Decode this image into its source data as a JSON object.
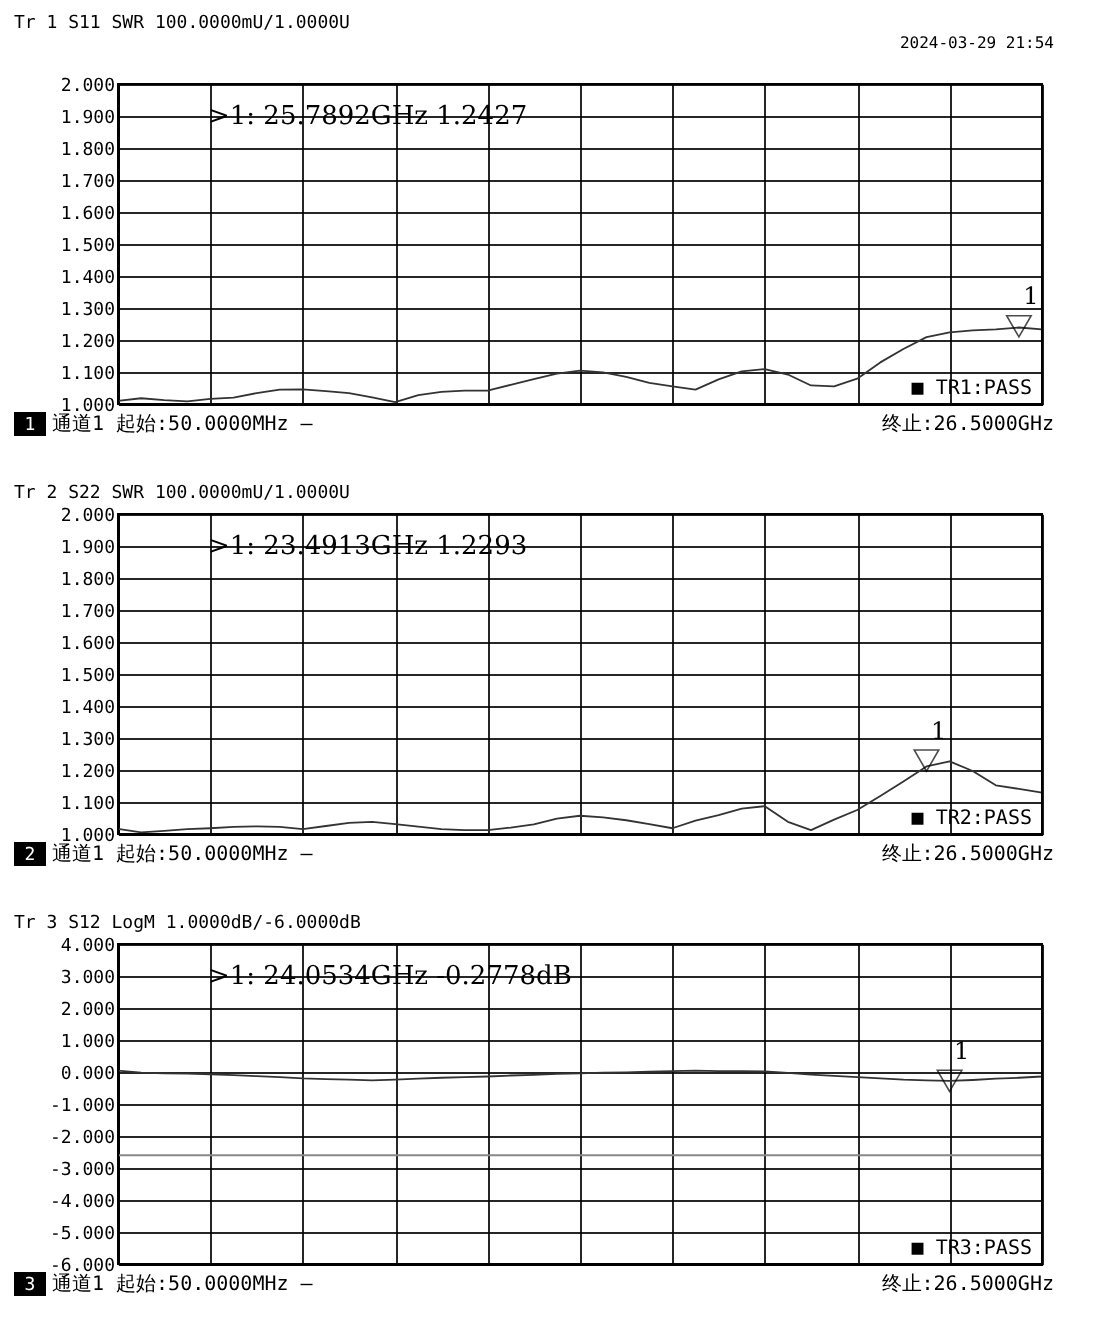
{
  "chart_data": [
    {
      "type": "line",
      "title": "Tr 1  S11 SWR 100.0000mU/1.0000U",
      "annotations": [
        ">1:   25.7892GHz 1.2427",
        "■ TR1:PASS",
        "1",
        "通道1  起始:50.0000MHz —",
        "终止:26.5000GHz",
        "2024-03-29 21:54"
      ],
      "categories": [
        null,
        null,
        null,
        null,
        null,
        null,
        null,
        null,
        null,
        null,
        null,
        null,
        null,
        null,
        null,
        null,
        null,
        null,
        null,
        null,
        null,
        null,
        null,
        null,
        null,
        null,
        null,
        null,
        null,
        null,
        null,
        null,
        null,
        null,
        null,
        null,
        null,
        null,
        null,
        null,
        null
      ],
      "series": [
        {
          "color": "#333333",
          "values": [
            1.01,
            1.018,
            1.012,
            1.008,
            1.016,
            1.02,
            1.034,
            1.045,
            1.046,
            1.04,
            1.034,
            1.021,
            1.006,
            1.028,
            1.038,
            1.042,
            1.042,
            1.06,
            1.078,
            1.095,
            1.104,
            1.099,
            1.085,
            1.066,
            1.055,
            1.045,
            1.077,
            1.102,
            1.109,
            1.092,
            1.058,
            1.055,
            1.079,
            1.13,
            1.172,
            1.209,
            1.224,
            1.23,
            1.233,
            1.239,
            1.233
          ]
        },
        {
          "type": "scatter",
          "name": "1",
          "marker": "triangle",
          "color": "#000000",
          "values": [
            null,
            null,
            null,
            null,
            null,
            null,
            null,
            null,
            null,
            null,
            null,
            null,
            null,
            null,
            null,
            null,
            null,
            null,
            null,
            null,
            null,
            null,
            null,
            null,
            null,
            null,
            null,
            null,
            null,
            null,
            null,
            null,
            null,
            null,
            null,
            null,
            null,
            null,
            null,
            1.2427,
            null
          ]
        }
      ],
      "ylim": [
        1.0,
        2.0
      ],
      "yticks": [
        {
          "value": 1.0,
          "label": "1.000"
        },
        {
          "value": 1.1,
          "label": "1.100"
        },
        {
          "value": 1.2,
          "label": "1.200"
        },
        {
          "value": 1.3,
          "label": "1.300"
        },
        {
          "value": 1.4,
          "label": "1.400"
        },
        {
          "value": 1.5,
          "label": "1.500"
        },
        {
          "value": 1.6,
          "label": "1.600"
        },
        {
          "value": 1.7,
          "label": "1.700"
        },
        {
          "value": 1.8,
          "label": "1.800"
        },
        {
          "value": 1.9,
          "label": "1.900"
        },
        {
          "value": 2.0,
          "label": "2.000"
        }
      ],
      "tick_labels": "y",
      "grid": true,
      "legend": false
    },
    {
      "type": "line",
      "title": "Tr 2  S22 SWR 100.0000mU/1.0000U",
      "annotations": [
        ">1:   23.4913GHz 1.2293",
        "■ TR2:PASS",
        "2",
        "通道1  起始:50.0000MHz —",
        "终止:26.5000GHz"
      ],
      "categories": [
        null,
        null,
        null,
        null,
        null,
        null,
        null,
        null,
        null,
        null,
        null,
        null,
        null,
        null,
        null,
        null,
        null,
        null,
        null,
        null,
        null,
        null,
        null,
        null,
        null,
        null,
        null,
        null,
        null,
        null,
        null,
        null,
        null,
        null,
        null,
        null,
        null,
        null,
        null,
        null,
        null
      ],
      "series": [
        {
          "color": "#333333",
          "values": [
            1.016,
            1.005,
            1.01,
            1.015,
            1.018,
            1.022,
            1.024,
            1.022,
            1.015,
            1.025,
            1.035,
            1.038,
            1.031,
            1.023,
            1.015,
            1.012,
            1.012,
            1.02,
            1.03,
            1.048,
            1.057,
            1.052,
            1.043,
            1.031,
            1.018,
            1.042,
            1.059,
            1.079,
            1.087,
            1.038,
            1.012,
            1.045,
            1.075,
            1.119,
            1.164,
            1.211,
            1.227,
            1.197,
            1.152,
            1.141,
            1.129
          ]
        },
        {
          "type": "scatter",
          "name": "1",
          "marker": "triangle",
          "color": "#000000",
          "values": [
            null,
            null,
            null,
            null,
            null,
            null,
            null,
            null,
            null,
            null,
            null,
            null,
            null,
            null,
            null,
            null,
            null,
            null,
            null,
            null,
            null,
            null,
            null,
            null,
            null,
            null,
            null,
            null,
            null,
            null,
            null,
            null,
            null,
            null,
            null,
            1.2293,
            null,
            null,
            null,
            null,
            null
          ]
        }
      ],
      "ylim": [
        1.0,
        2.0
      ],
      "yticks": [
        {
          "value": 1.0,
          "label": "1.000"
        },
        {
          "value": 1.1,
          "label": "1.100"
        },
        {
          "value": 1.2,
          "label": "1.200"
        },
        {
          "value": 1.3,
          "label": "1.300"
        },
        {
          "value": 1.4,
          "label": "1.400"
        },
        {
          "value": 1.5,
          "label": "1.500"
        },
        {
          "value": 1.6,
          "label": "1.600"
        },
        {
          "value": 1.7,
          "label": "1.700"
        },
        {
          "value": 1.8,
          "label": "1.800"
        },
        {
          "value": 1.9,
          "label": "1.900"
        },
        {
          "value": 2.0,
          "label": "2.000"
        }
      ],
      "tick_labels": "y",
      "grid": true,
      "legend": false
    },
    {
      "type": "line",
      "title": "Tr 3  S12 LogM 1.0000dB/-6.0000dB",
      "annotations": [
        ">1:   24.0534GHz -0.2778dB",
        "■ TR3:PASS",
        "3",
        "通道1  起始:50.0000MHz —",
        "终止:26.5000GHz"
      ],
      "categories": [
        null,
        null,
        null,
        null,
        null,
        null,
        null,
        null,
        null,
        null,
        null,
        null,
        null,
        null,
        null,
        null,
        null,
        null,
        null,
        null,
        null,
        null,
        null,
        null,
        null,
        null,
        null,
        null,
        null,
        null,
        null,
        null,
        null,
        null,
        null,
        null,
        null,
        null,
        null,
        null,
        null
      ],
      "series": [
        {
          "color": "#333333",
          "values": [
            0.04,
            -0.02,
            -0.04,
            -0.05,
            -0.07,
            -0.1,
            -0.13,
            -0.16,
            -0.2,
            -0.22,
            -0.24,
            -0.26,
            -0.24,
            -0.21,
            -0.18,
            -0.16,
            -0.14,
            -0.11,
            -0.09,
            -0.06,
            -0.04,
            -0.02,
            -0.01,
            0.01,
            0.03,
            0.04,
            0.03,
            0.03,
            0.02,
            -0.03,
            -0.08,
            -0.12,
            -0.16,
            -0.2,
            -0.24,
            -0.26,
            -0.28,
            -0.25,
            -0.21,
            -0.18,
            -0.14
          ]
        },
        {
          "type": "scatter",
          "name": "1",
          "marker": "triangle",
          "color": "#000000",
          "values": [
            null,
            null,
            null,
            null,
            null,
            null,
            null,
            null,
            null,
            null,
            null,
            null,
            null,
            null,
            null,
            null,
            null,
            null,
            null,
            null,
            null,
            null,
            null,
            null,
            null,
            null,
            null,
            null,
            null,
            null,
            null,
            null,
            null,
            null,
            null,
            null,
            -0.2778,
            null,
            null,
            null,
            null
          ]
        }
      ],
      "ref_lines": [
        {
          "axis": "y",
          "value": -2.6,
          "color": "#888888"
        }
      ],
      "ylim": [
        -6.0,
        4.0
      ],
      "yticks": [
        {
          "value": -6,
          "label": "-6.000"
        },
        {
          "value": -5,
          "label": "-5.000"
        },
        {
          "value": -4,
          "label": "-4.000"
        },
        {
          "value": -3,
          "label": "-3.000"
        },
        {
          "value": -2,
          "label": "-2.000"
        },
        {
          "value": -1,
          "label": "-1.000"
        },
        {
          "value": 0,
          "label": "0.000"
        },
        {
          "value": 1,
          "label": "1.000"
        },
        {
          "value": 2,
          "label": "2.000"
        },
        {
          "value": 3,
          "label": "3.000"
        },
        {
          "value": 4,
          "label": "4.000"
        }
      ],
      "tick_labels": "y",
      "grid": true,
      "legend": false
    }
  ]
}
